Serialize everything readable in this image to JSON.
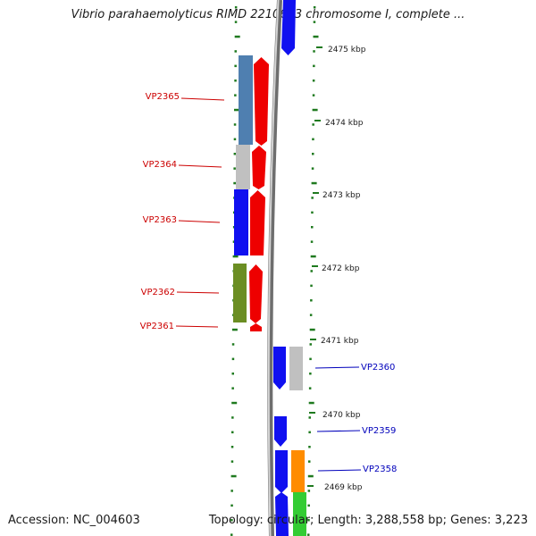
{
  "title": "Vibrio parahaemolyticus RIMD 2210633 chromosome I, complete ...",
  "accession": "Accession: NC_004603",
  "stats": "Topology: circular; Length: 3,288,558 bp; Genes: 3,223",
  "colors": {
    "red_label": "#cc0000",
    "blue_label": "#0000bb",
    "tick_green": "#1f7a1f",
    "backbone": "#8c8c8c"
  },
  "scale": [
    {
      "label": "2475 kbp"
    },
    {
      "label": "2474 kbp"
    },
    {
      "label": "2473 kbp"
    },
    {
      "label": "2472 kbp"
    },
    {
      "label": "2471 kbp"
    },
    {
      "label": "2470 kbp"
    },
    {
      "label": "2469 kbp"
    }
  ],
  "genes": [
    {
      "name": "VP2365",
      "side": "left"
    },
    {
      "name": "VP2364",
      "side": "left"
    },
    {
      "name": "VP2363",
      "side": "left"
    },
    {
      "name": "VP2362",
      "side": "left"
    },
    {
      "name": "VP2361",
      "side": "left"
    },
    {
      "name": "VP2360",
      "side": "right"
    },
    {
      "name": "VP2359",
      "side": "right"
    },
    {
      "name": "VP2358",
      "side": "right"
    }
  ]
}
